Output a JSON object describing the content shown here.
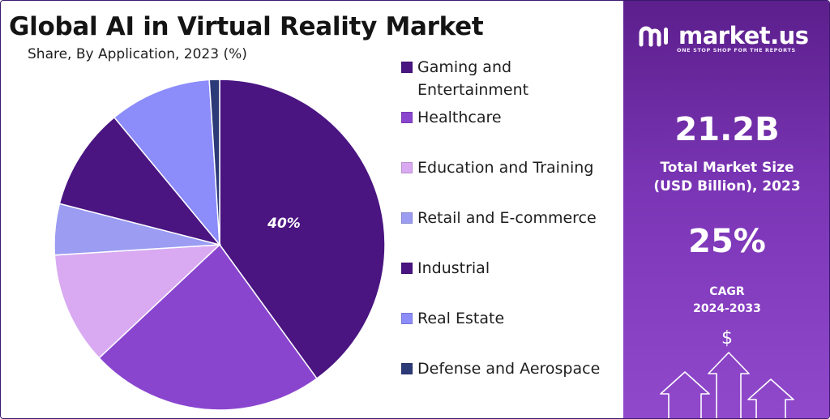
{
  "header": {
    "title": "Global AI in Virtual Reality Market",
    "subtitle": "Share, By Application, 2023 (%)"
  },
  "chart_data": {
    "type": "pie",
    "title": "Global AI in Virtual Reality Market",
    "subtitle": "Share, By Application, 2023 (%)",
    "categories": [
      "Gaming and Entertainment",
      "Healthcare",
      "Education and Training",
      "Retail and E-commerce",
      "Industrial",
      "Real Estate",
      "Defense and Aerospace"
    ],
    "values": [
      40,
      23,
      11,
      5,
      10,
      10,
      1
    ],
    "colors": [
      "#4a1481",
      "#8a45cf",
      "#d9aaf2",
      "#9b9cf2",
      "#4a1481",
      "#8c8cfb",
      "#2d3a78"
    ],
    "data_labels": [
      "40%",
      "",
      "",
      "",
      "",
      "",
      ""
    ],
    "legend_position": "right"
  },
  "legend": [
    {
      "label": "Gaming and Entertainment",
      "color": "#4a1481"
    },
    {
      "label": "Healthcare",
      "color": "#8a45cf"
    },
    {
      "label": "Education and Training",
      "color": "#d9aaf2"
    },
    {
      "label": "Retail and E-commerce",
      "color": "#9b9cf2"
    },
    {
      "label": "Industrial",
      "color": "#4a1481"
    },
    {
      "label": "Real Estate",
      "color": "#8c8cfb"
    },
    {
      "label": "Defense and Aerospace",
      "color": "#2d3a78"
    }
  ],
  "panel": {
    "brand_name": "market.us",
    "brand_tagline": "ONE STOP SHOP FOR THE REPORTS",
    "market_size_value": "21.2B",
    "market_size_caption_line1": "Total Market Size",
    "market_size_caption_line2": "(USD Billion), 2023",
    "cagr_value": "25%",
    "cagr_label": "CAGR",
    "cagr_period": "2024-2033",
    "currency_symbol": "$"
  }
}
